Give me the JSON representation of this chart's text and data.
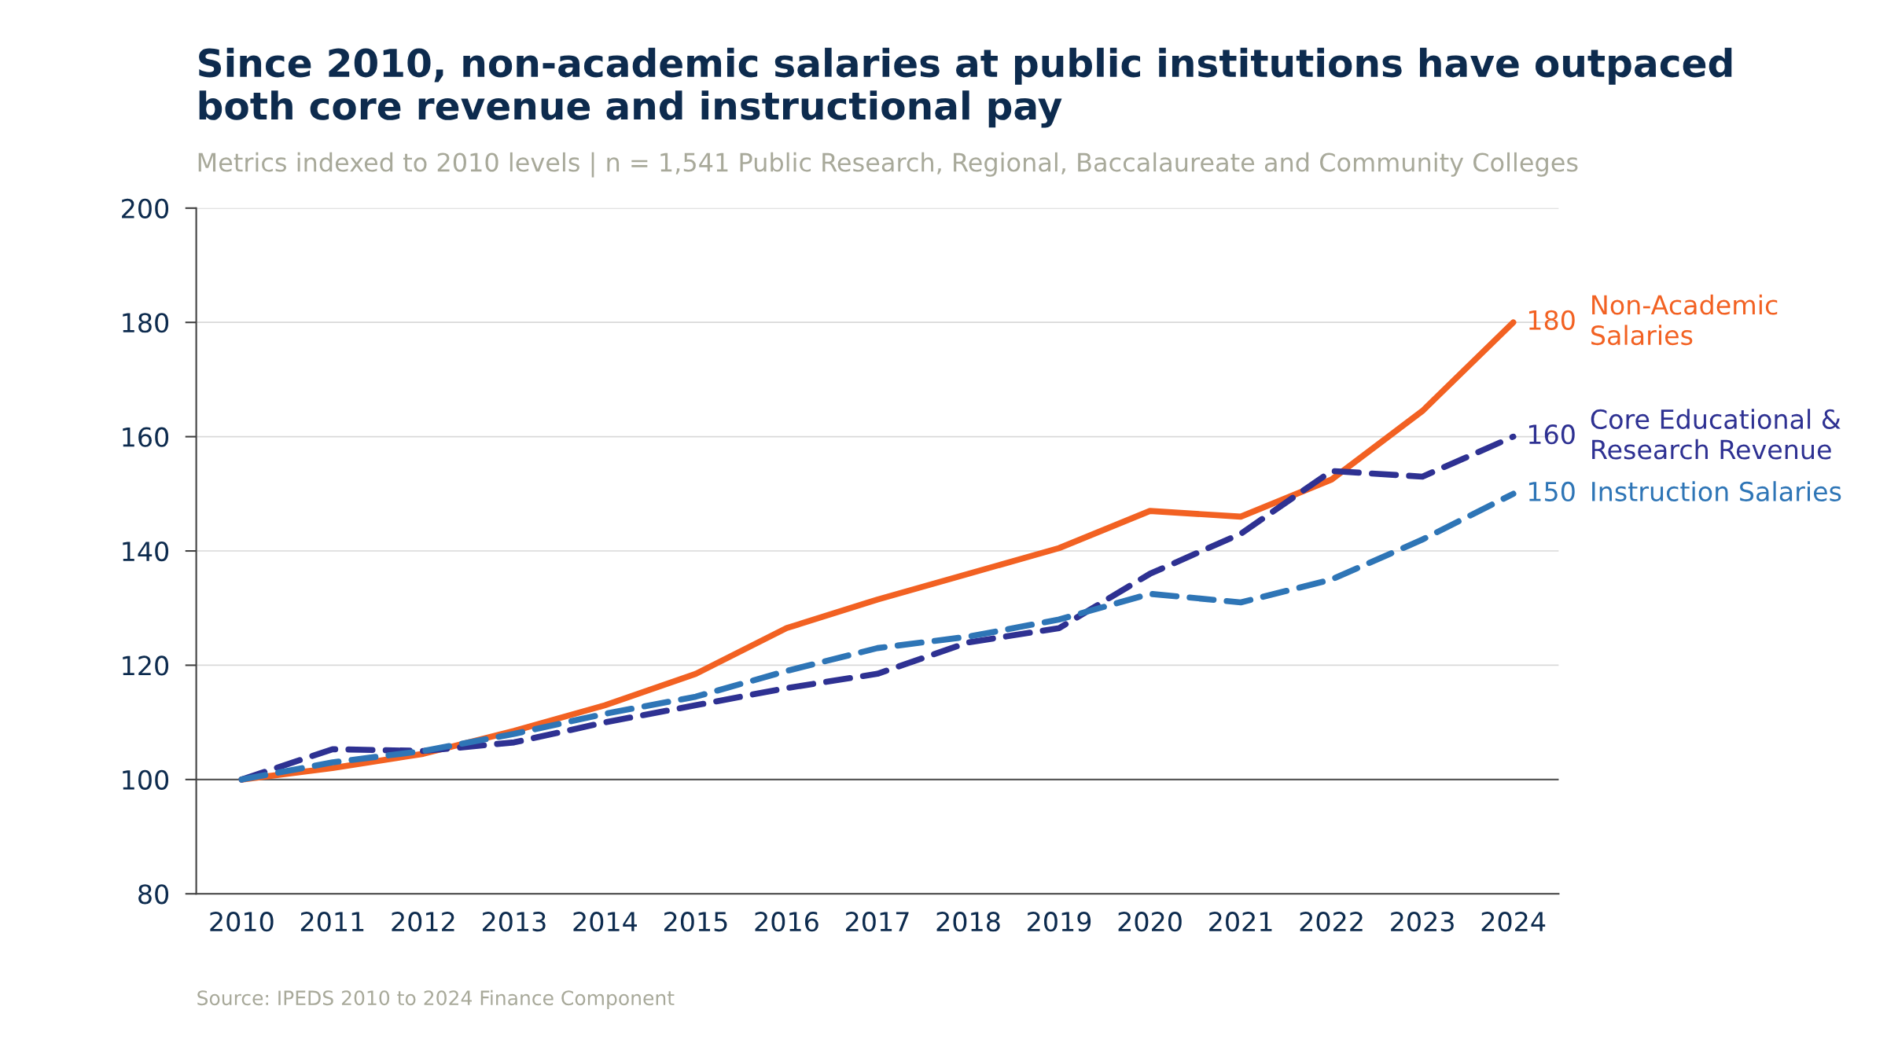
{
  "chart_data": {
    "type": "line",
    "title": "Since 2010, non-academic salaries at public institutions have outpaced\nboth core revenue and instructional pay",
    "subtitle": "Metrics indexed to 2010 levels | n = 1,541 Public Research, Regional, Baccalaureate and Community Colleges",
    "categories": [
      "2010",
      "2011",
      "2012",
      "2013",
      "2014",
      "2015",
      "2016",
      "2017",
      "2018",
      "2019",
      "2020",
      "2021",
      "2022",
      "2023",
      "2024"
    ],
    "series": [
      {
        "name": "Non-Academic\nSalaries",
        "color": "#f26122",
        "line_style": "solid",
        "values": [
          100,
          102,
          104.5,
          108.5,
          113,
          118.5,
          126.5,
          131.5,
          136,
          140.5,
          147,
          146,
          152.5,
          164.5,
          180
        ],
        "value_labels": [
          null,
          null,
          null,
          null,
          null,
          null,
          null,
          null,
          null,
          null,
          null,
          null,
          null,
          null,
          "180"
        ]
      },
      {
        "name": "Core Educational &\nResearch Revenue",
        "color": "#2e3192",
        "line_style": "dashed",
        "values": [
          100,
          105.3,
          105,
          106.5,
          110,
          113,
          116,
          118.5,
          124,
          126.5,
          136,
          143,
          154,
          153,
          160
        ],
        "value_labels": [
          null,
          null,
          null,
          null,
          null,
          null,
          null,
          null,
          null,
          null,
          null,
          null,
          null,
          null,
          "160"
        ]
      },
      {
        "name": "Instruction Salaries",
        "color": "#2e75b6",
        "line_style": "dashed",
        "values": [
          100,
          103,
          105,
          108,
          111.5,
          114.5,
          119,
          123,
          125,
          128,
          132.5,
          131,
          135,
          142,
          150
        ],
        "value_labels": [
          null,
          null,
          null,
          null,
          null,
          null,
          null,
          null,
          null,
          null,
          null,
          null,
          null,
          null,
          "150"
        ]
      }
    ],
    "ylim": [
      80,
      200
    ],
    "yticks": [
      80,
      100,
      120,
      140,
      160,
      180,
      200
    ],
    "grid": "y",
    "legend": false,
    "marker": "none",
    "ref_lines": [
      {
        "axis": "y",
        "value": 100,
        "color": "#595959",
        "line_style": "solid"
      }
    ],
    "annotations": [
      "Source: IPEDS 2010 to 2024 Finance Component"
    ]
  }
}
